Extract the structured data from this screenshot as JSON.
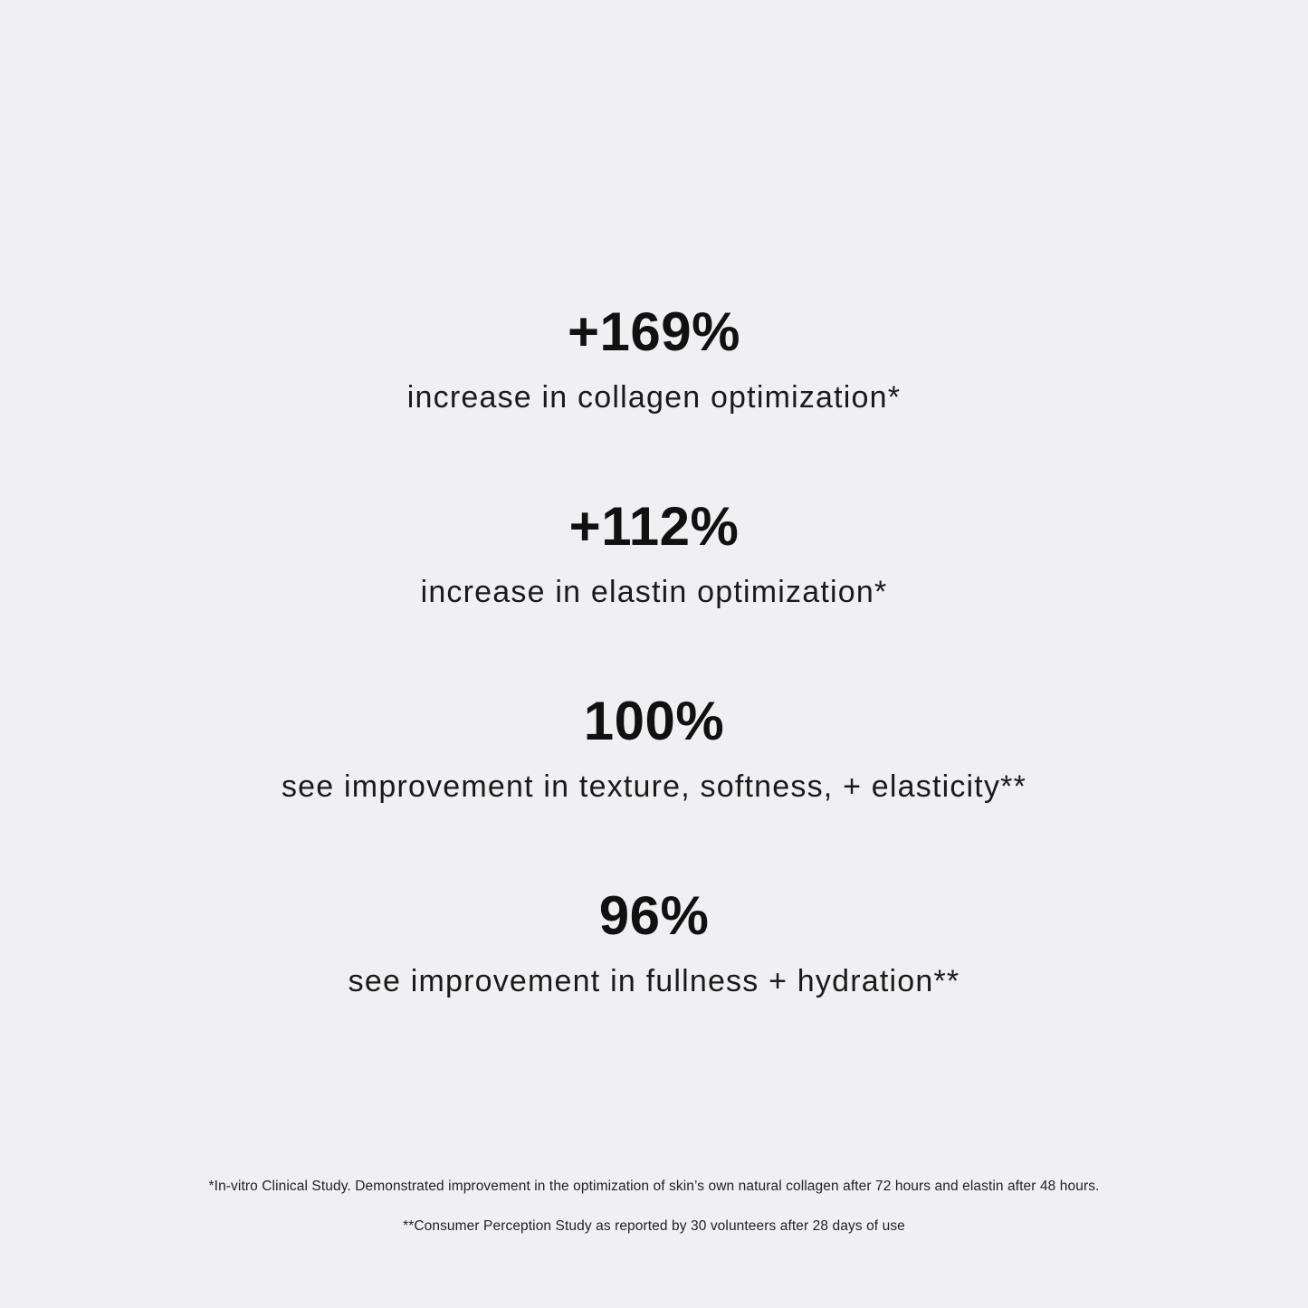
{
  "stats": [
    {
      "value": "+169%",
      "description": "increase in collagen optimization*"
    },
    {
      "value": "+112%",
      "description": "increase in elastin optimization*"
    },
    {
      "value": "100%",
      "description": "see improvement in texture, softness, + elasticity**"
    },
    {
      "value": "96%",
      "description": "see improvement in fullness + hydration**"
    }
  ],
  "footnotes": [
    "*In-vitro Clinical Study. Demonstrated improvement in the optimization of skin’s own natural collagen after 72 hours and elastin after 48 hours.",
    "**Consumer Perception Study as reported by 30 volunteers after 28 days of use"
  ],
  "colors": {
    "background": "#f0f0f2",
    "text": "#111111"
  }
}
